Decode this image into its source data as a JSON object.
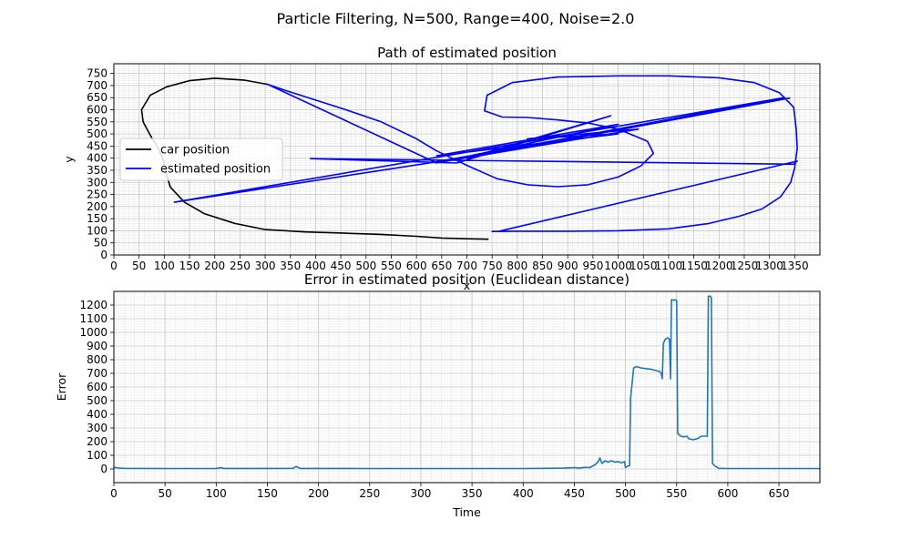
{
  "figure": {
    "suptitle": "Particle Filtering, N=500, Range=400, Noise=2.0"
  },
  "chart_data": [
    {
      "type": "line",
      "title": "Path of estimated position",
      "xlabel": "x",
      "ylabel": "y",
      "xlim": [
        0,
        1400
      ],
      "ylim": [
        0,
        790
      ],
      "xticks": [
        0,
        50,
        100,
        150,
        200,
        250,
        300,
        350,
        400,
        450,
        500,
        550,
        600,
        650,
        700,
        750,
        800,
        850,
        900,
        950,
        1000,
        1050,
        1100,
        1150,
        1200,
        1250,
        1300,
        1350
      ],
      "yticks": [
        0,
        50,
        100,
        150,
        200,
        250,
        300,
        350,
        400,
        450,
        500,
        550,
        600,
        650,
        700,
        750
      ],
      "grid": "major and minor",
      "legend": "center-left",
      "series": [
        {
          "name": "car position",
          "color": "#000000",
          "points": [
            [
              305,
              705
            ],
            [
              260,
              722
            ],
            [
              200,
              730
            ],
            [
              150,
              720
            ],
            [
              105,
              695
            ],
            [
              72,
              660
            ],
            [
              55,
              600
            ],
            [
              58,
              550
            ],
            [
              72,
              495
            ],
            [
              88,
              440
            ],
            [
              98,
              390
            ],
            [
              103,
              340
            ],
            [
              112,
              280
            ],
            [
              140,
              218
            ],
            [
              180,
              170
            ],
            [
              240,
              130
            ],
            [
              300,
              105
            ],
            [
              380,
              95
            ],
            [
              460,
              90
            ],
            [
              530,
              85
            ],
            [
              600,
              77
            ],
            [
              650,
              70
            ],
            [
              700,
              67
            ],
            [
              743,
              65
            ]
          ]
        },
        {
          "name": "estimated position",
          "color": "#0000ff",
          "points": [
            [
              305,
              705
            ],
            [
              340,
              680
            ],
            [
              400,
              640
            ],
            [
              460,
              600
            ],
            [
              530,
              550
            ],
            [
              600,
              480
            ],
            [
              640,
              430
            ],
            [
              700,
              370
            ],
            [
              760,
              315
            ],
            [
              820,
              290
            ],
            [
              880,
              282
            ],
            [
              940,
              290
            ],
            [
              1000,
              322
            ],
            [
              1045,
              368
            ],
            [
              1070,
              420
            ],
            [
              1058,
              470
            ],
            [
              1000,
              520
            ],
            [
              940,
              545
            ],
            [
              880,
              558
            ],
            [
              820,
              568
            ],
            [
              770,
              570
            ],
            [
              735,
              595
            ],
            [
              740,
              660
            ],
            [
              790,
              712
            ],
            [
              880,
              735
            ],
            [
              1000,
              740
            ],
            [
              1100,
              740
            ],
            [
              1200,
              732
            ],
            [
              1270,
              712
            ],
            [
              1320,
              670
            ],
            [
              1348,
              610
            ],
            [
              1353,
              520
            ],
            [
              1355,
              440
            ],
            [
              1350,
              360
            ],
            [
              1342,
              300
            ],
            [
              1322,
              240
            ],
            [
              1285,
              190
            ],
            [
              1240,
              160
            ],
            [
              1180,
              130
            ],
            [
              1100,
              108
            ],
            [
              1000,
              100
            ],
            [
              900,
              98
            ],
            [
              800,
              98
            ],
            [
              750,
              97
            ],
            [
              762,
              97
            ],
            [
              1355,
              388
            ],
            [
              1348,
              375
            ],
            [
              390,
              398
            ],
            [
              680,
              380
            ],
            [
              985,
              575
            ],
            [
              700,
              400
            ],
            [
              1340,
              648
            ],
            [
              640,
              385
            ],
            [
              120,
              218
            ],
            [
              1330,
              650
            ],
            [
              660,
              388
            ],
            [
              1040,
              520
            ],
            [
              820,
              480
            ],
            [
              1000,
              500
            ],
            [
              640,
              410
            ],
            [
              1000,
              540
            ],
            [
              640,
              380
            ],
            [
              305,
              705
            ]
          ]
        }
      ]
    },
    {
      "type": "line",
      "title": "Error in estimated position (Euclidean distance)",
      "xlabel": "Time",
      "ylabel": "Error",
      "xlim": [
        0,
        690
      ],
      "ylim": [
        -100,
        1300
      ],
      "xticks": [
        0,
        50,
        100,
        150,
        200,
        250,
        300,
        350,
        400,
        450,
        500,
        550,
        600,
        650
      ],
      "yticks": [
        0,
        100,
        200,
        300,
        400,
        500,
        600,
        700,
        800,
        900,
        1000,
        1100,
        1200
      ],
      "grid": "major and minor",
      "series": [
        {
          "name": "",
          "color": "#1f77b4",
          "points": [
            [
              0,
              12
            ],
            [
              5,
              7
            ],
            [
              10,
              5
            ],
            [
              50,
              3
            ],
            [
              100,
              4
            ],
            [
              105,
              10
            ],
            [
              107,
              4
            ],
            [
              150,
              4
            ],
            [
              175,
              5
            ],
            [
              178,
              18
            ],
            [
              180,
              12
            ],
            [
              182,
              4
            ],
            [
              250,
              3
            ],
            [
              300,
              3
            ],
            [
              350,
              3
            ],
            [
              400,
              3
            ],
            [
              440,
              6
            ],
            [
              450,
              10
            ],
            [
              455,
              6
            ],
            [
              460,
              12
            ],
            [
              465,
              10
            ],
            [
              470,
              30
            ],
            [
              473,
              50
            ],
            [
              475,
              80
            ],
            [
              477,
              40
            ],
            [
              480,
              60
            ],
            [
              483,
              50
            ],
            [
              486,
              60
            ],
            [
              490,
              50
            ],
            [
              493,
              55
            ],
            [
              496,
              45
            ],
            [
              499,
              55
            ],
            [
              500,
              10
            ],
            [
              502,
              20
            ],
            [
              504,
              25
            ],
            [
              505,
              520
            ],
            [
              508,
              740
            ],
            [
              511,
              750
            ],
            [
              515,
              740
            ],
            [
              520,
              735
            ],
            [
              525,
              730
            ],
            [
              530,
              720
            ],
            [
              533,
              715
            ],
            [
              535,
              700
            ],
            [
              536,
              660
            ],
            [
              537,
              920
            ],
            [
              539,
              950
            ],
            [
              541,
              960
            ],
            [
              543,
              950
            ],
            [
              544,
              660
            ],
            [
              545,
              1240
            ],
            [
              547,
              1235
            ],
            [
              549,
              1240
            ],
            [
              550,
              1230
            ],
            [
              551,
              260
            ],
            [
              554,
              240
            ],
            [
              557,
              235
            ],
            [
              560,
              240
            ],
            [
              562,
              220
            ],
            [
              566,
              215
            ],
            [
              570,
              220
            ],
            [
              574,
              240
            ],
            [
              578,
              240
            ],
            [
              580,
              240
            ],
            [
              581,
              1265
            ],
            [
              583,
              1265
            ],
            [
              584,
              1250
            ],
            [
              585,
              40
            ],
            [
              587,
              25
            ],
            [
              589,
              15
            ],
            [
              591,
              5
            ],
            [
              600,
              3
            ],
            [
              650,
              3
            ],
            [
              690,
              3
            ]
          ]
        }
      ]
    }
  ]
}
